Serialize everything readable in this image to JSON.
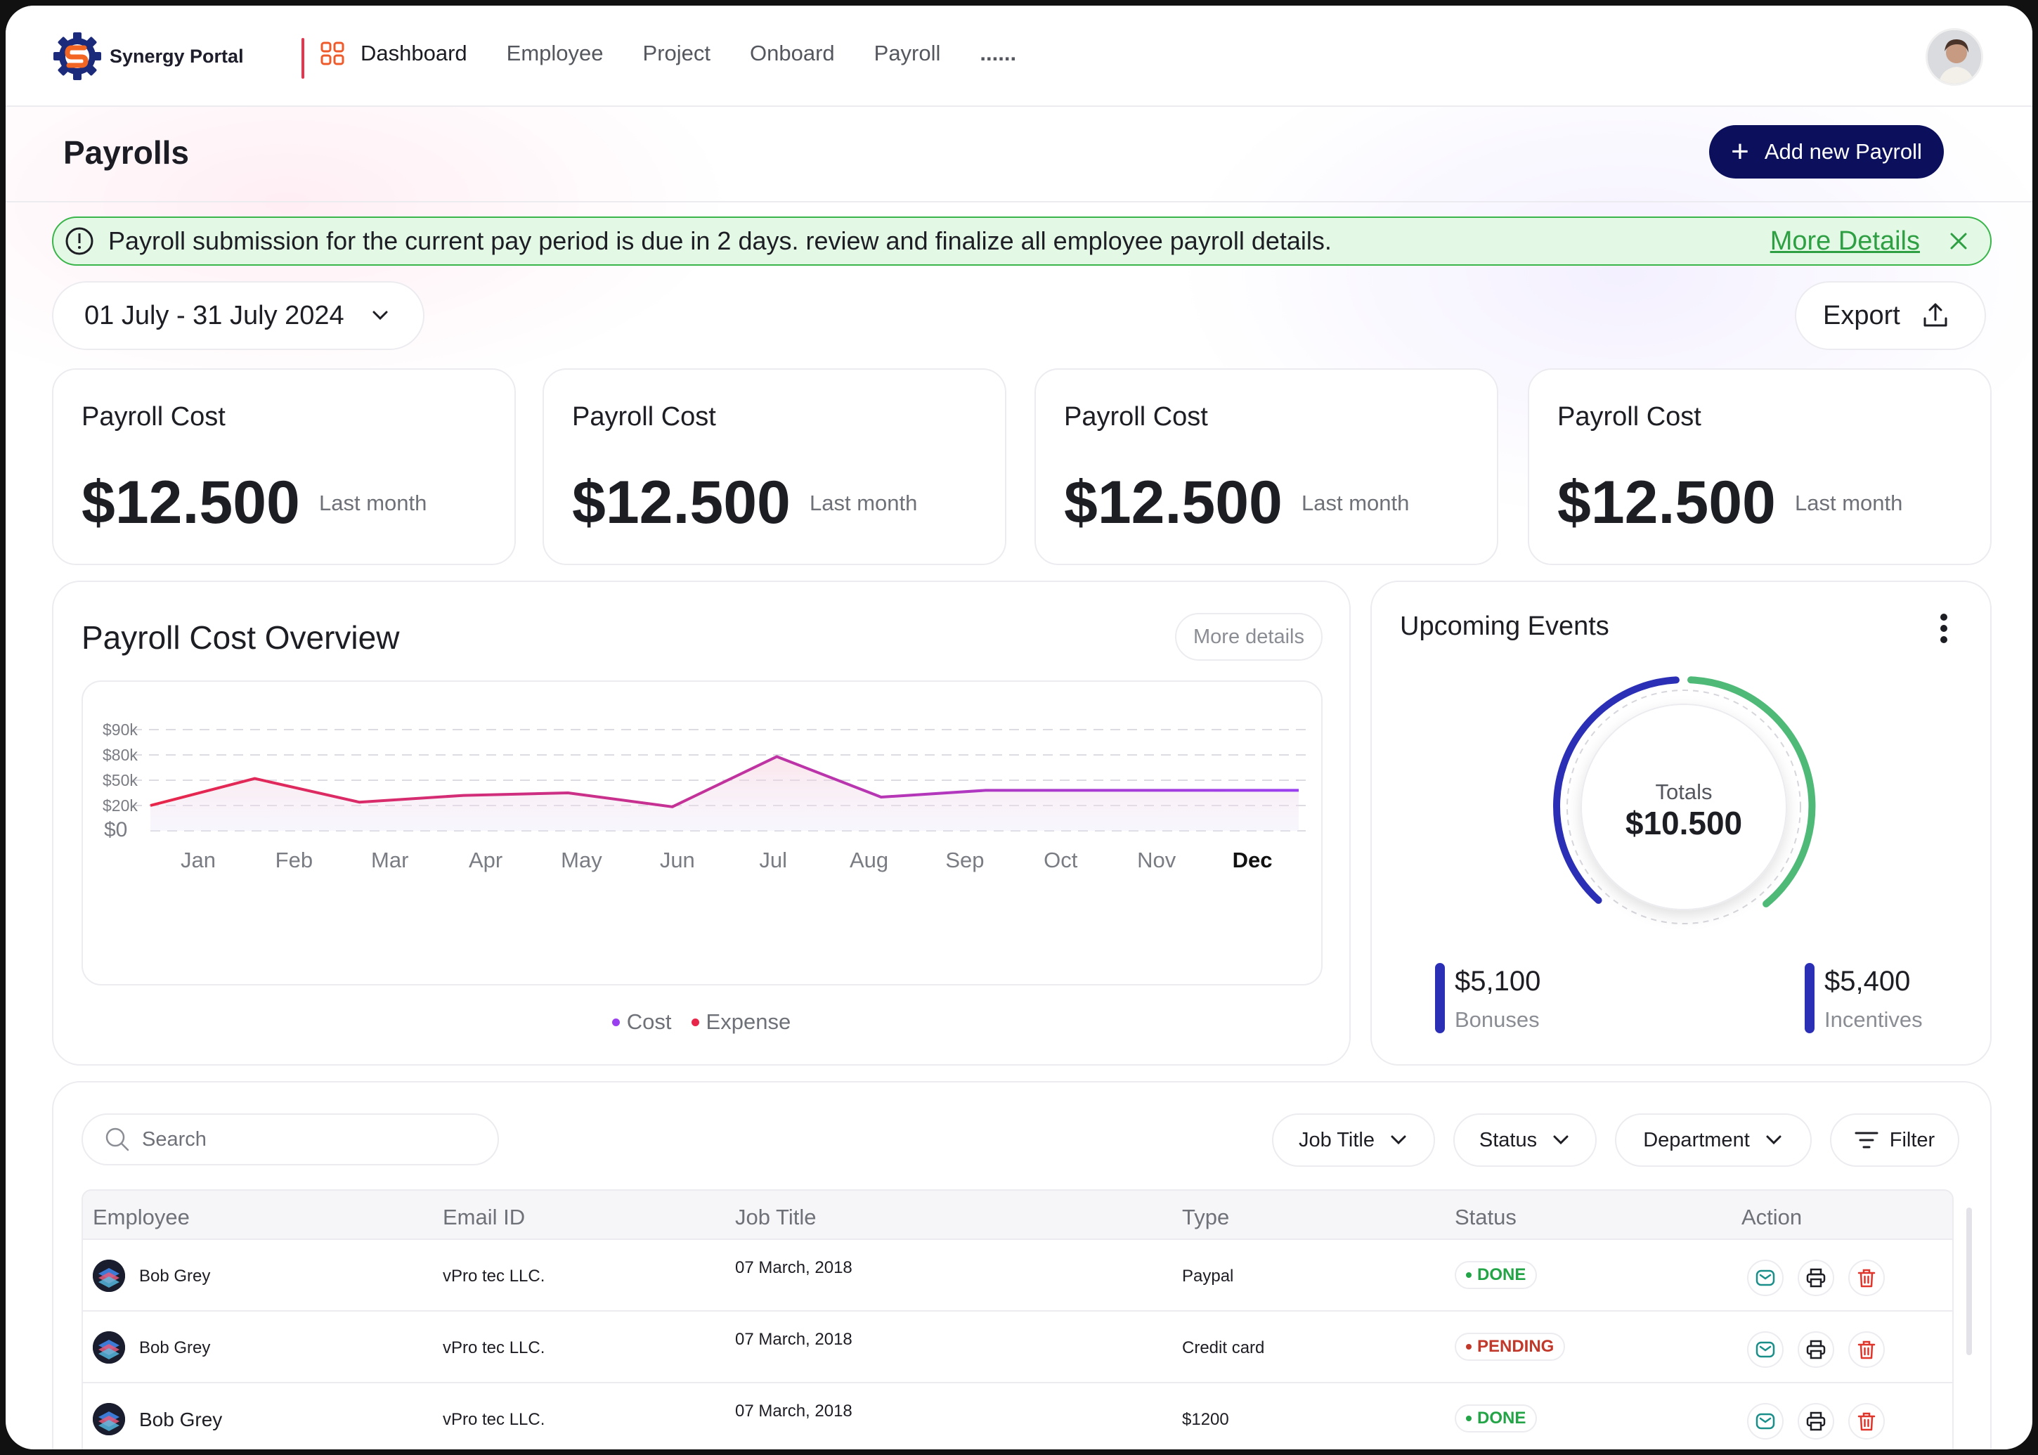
{
  "app": {
    "name": "Synergy Portal",
    "nav": [
      "Dashboard",
      "Employee",
      "Project",
      "Onboard",
      "Payroll",
      "......"
    ]
  },
  "page": {
    "title": "Payrolls",
    "add_button": "Add new Payroll"
  },
  "alert": {
    "text": "Payroll submission for the current pay period is due in 2 days. review and finalize all employee payroll details.",
    "link": "More Details"
  },
  "date_range": "01 July - 31 July 2024",
  "export_label": "Export",
  "stats": [
    {
      "title": "Payroll Cost",
      "value": "$12.500",
      "sub": "Last month"
    },
    {
      "title": "Payroll Cost",
      "value": "$12.500",
      "sub": "Last month"
    },
    {
      "title": "Payroll Cost",
      "value": "$12.500",
      "sub": "Last month"
    },
    {
      "title": "Payroll Cost",
      "value": "$12.500",
      "sub": "Last month"
    }
  ],
  "overview": {
    "title": "Payroll Cost Overview",
    "more_details": "More details",
    "legend": [
      "Cost",
      "Expense"
    ]
  },
  "chart_data": {
    "type": "line",
    "categories": [
      "Jan",
      "Feb",
      "Mar",
      "Apr",
      "May",
      "Jun",
      "Jul",
      "Aug",
      "Sep",
      "Oct",
      "Nov",
      "Dec"
    ],
    "highlighted_category": "Dec",
    "y_ticks": [
      "$0",
      "$20k",
      "$50k",
      "$80k",
      "$90k"
    ],
    "y_tick_values": [
      0,
      20,
      50,
      80,
      90
    ],
    "values": [
      20,
      52,
      24,
      32,
      35,
      19,
      78,
      30,
      38,
      38,
      38,
      38
    ],
    "legend": [
      "Cost",
      "Expense"
    ],
    "colors": {
      "start": "#e8264a",
      "end": "#9a3ff0"
    },
    "grid": true,
    "legend_position": "bottom"
  },
  "events": {
    "title": "Upcoming Events",
    "total_label": "Totals",
    "total_value": "$10.500",
    "items": [
      {
        "value": "$5,100",
        "label": "Bonuses",
        "color": "#2b2fb6"
      },
      {
        "value": "$5,400",
        "label": "Incentives",
        "color": "#4fba78"
      }
    ]
  },
  "table": {
    "search_placeholder": "Search",
    "filters": [
      "Job Title",
      "Status",
      "Department"
    ],
    "filter_button": "Filter",
    "columns": [
      "Employee",
      "Email ID",
      "Job Title",
      "Type",
      "Status",
      "Action"
    ],
    "rows": [
      {
        "name": "Bob Grey",
        "email": "vPro tec LLC.",
        "job": "07 March, 2018",
        "type": "Paypal",
        "status": "DONE"
      },
      {
        "name": "Bob Grey",
        "email": "vPro tec LLC.",
        "job": "07 March, 2018",
        "type": "Credit card",
        "status": "PENDING"
      },
      {
        "name": "Bob Grey",
        "email": "vPro tec LLC.",
        "job": "07 March, 2018",
        "type": "$1200",
        "status": "DONE"
      }
    ],
    "status_colors": {
      "DONE": "#22a447",
      "PENDING": "#c0392b"
    }
  }
}
